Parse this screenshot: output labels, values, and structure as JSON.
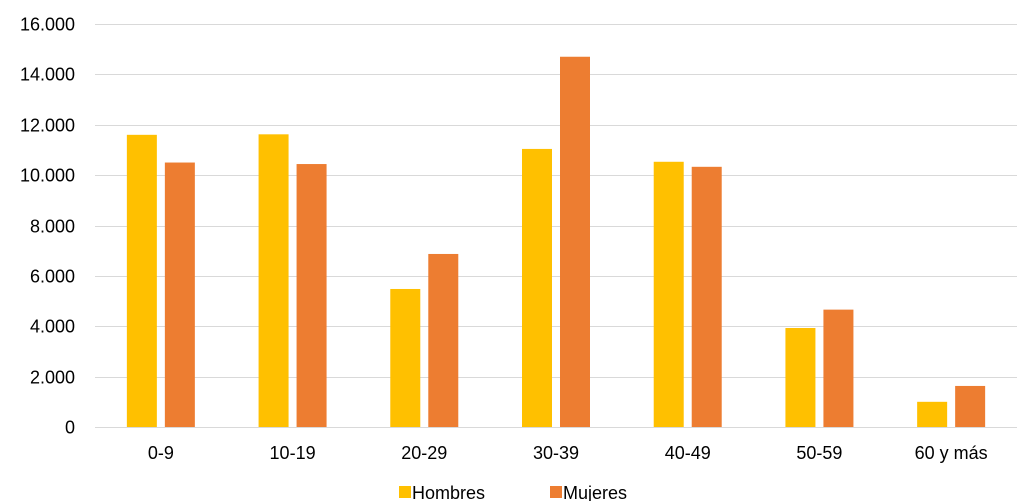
{
  "chart_data": {
    "type": "bar",
    "title": "",
    "xlabel": "",
    "ylabel": "",
    "categories": [
      "0-9",
      "10-19",
      "20-29",
      "30-39",
      "40-49",
      "50-59",
      "60 y más"
    ],
    "series": [
      {
        "name": "Hombres",
        "color": "#FFC000",
        "values": [
          11600,
          11620,
          5480,
          11040,
          10530,
          3930,
          1000
        ]
      },
      {
        "name": "Mujeres",
        "color": "#ED7D31",
        "values": [
          10500,
          10440,
          6870,
          14700,
          10330,
          4660,
          1630
        ]
      }
    ],
    "ylim": [
      0,
      16000
    ],
    "yticks": [
      0,
      2000,
      4000,
      6000,
      8000,
      10000,
      12000,
      14000,
      16000
    ],
    "ytick_labels": [
      "0",
      "2.000",
      "4.000",
      "6.000",
      "8.000",
      "10.000",
      "12.000",
      "14.000",
      "16.000"
    ],
    "grid": true,
    "legend_position": "bottom-center"
  }
}
